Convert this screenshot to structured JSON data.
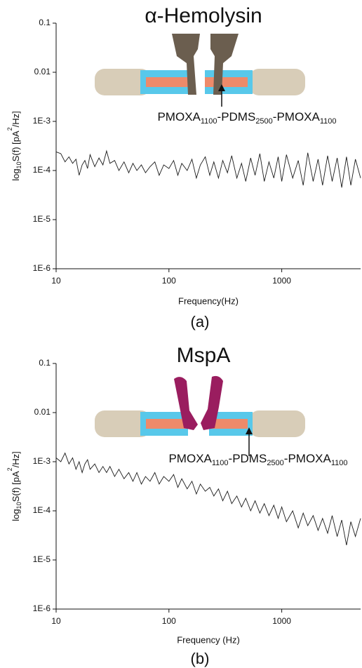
{
  "chart_data": [
    {
      "type": "line",
      "title": "α-Hemolysin",
      "xlabel": "Frequency(Hz)",
      "ylabel": [
        "log",
        "10",
        "S(f) [pA",
        "2",
        "/Hz]"
      ],
      "annotation": [
        "PMOXA",
        "1100",
        "-PDMS",
        "2500",
        "-PMOXA",
        "1100"
      ],
      "panel_label": "(a)",
      "log_x": true,
      "log_y": true,
      "color": "#1a1a1a",
      "xlim": [
        10,
        5000
      ],
      "ylim": [
        1e-06,
        0.1
      ],
      "xticks": [
        10,
        100,
        1000
      ],
      "yticks": [
        {
          "value": 1e-06,
          "label": "1E-6"
        },
        {
          "value": 1e-05,
          "label": "1E-5"
        },
        {
          "value": 0.0001,
          "label": "1E-4"
        },
        {
          "value": 0.001,
          "label": "1E-3"
        },
        0.01,
        0.1
      ],
      "x": [
        10,
        11,
        12,
        13,
        14,
        15,
        16,
        17,
        18,
        19,
        20,
        22,
        24,
        26,
        28,
        30,
        33,
        36,
        40,
        44,
        48,
        52,
        57,
        62,
        68,
        75,
        82,
        90,
        100,
        110,
        120,
        130,
        145,
        160,
        175,
        190,
        210,
        230,
        250,
        275,
        300,
        330,
        360,
        400,
        440,
        480,
        530,
        580,
        640,
        700,
        770,
        850,
        930,
        1000,
        1100,
        1250,
        1400,
        1550,
        1700,
        1900,
        2100,
        2300,
        2550,
        2800,
        3100,
        3400,
        3750,
        4100,
        4500,
        5000
      ],
      "values": [
        0.00024,
        0.00022,
        0.00015,
        0.00019,
        0.00014,
        0.00017,
        8e-05,
        0.00013,
        0.00016,
        0.00011,
        0.00021,
        0.00012,
        0.00018,
        0.00013,
        0.00025,
        0.00014,
        0.00016,
        0.0001,
        0.00015,
        9e-05,
        0.00014,
        0.0001,
        0.00013,
        9e-05,
        0.00012,
        0.00015,
        8e-05,
        0.00013,
        0.00011,
        0.00016,
        8e-05,
        0.00014,
        0.0001,
        0.00017,
        7e-05,
        0.00013,
        0.00019,
        8e-05,
        0.00015,
        7e-05,
        0.00016,
        9e-05,
        0.0002,
        7e-05,
        0.00014,
        6e-05,
        0.00018,
        8e-05,
        0.00022,
        6e-05,
        0.00015,
        7e-05,
        0.00019,
        6e-05,
        0.00021,
        7e-05,
        0.00016,
        5e-05,
        0.00023,
        6e-05,
        0.00017,
        5e-05,
        0.0002,
        6e-05,
        0.00018,
        4.5e-05,
        0.00019,
        5e-05,
        0.00017,
        7e-05
      ]
    },
    {
      "type": "line",
      "title": "MspA",
      "xlabel": "Frequency (Hz)",
      "ylabel": [
        "log",
        "10",
        "S(f) [pA",
        "2",
        "/Hz]"
      ],
      "annotation": [
        "PMOXA",
        "1100",
        "-PDMS",
        "2500",
        "-PMOXA",
        "1100"
      ],
      "panel_label": "(b)",
      "log_x": true,
      "log_y": true,
      "color": "#1a1a1a",
      "xlim": [
        10,
        5000
      ],
      "ylim": [
        1e-06,
        0.1
      ],
      "xticks": [
        10,
        100,
        1000
      ],
      "yticks": [
        {
          "value": 1e-06,
          "label": "1E-6"
        },
        {
          "value": 1e-05,
          "label": "1E-5"
        },
        {
          "value": 0.0001,
          "label": "1E-4"
        },
        {
          "value": 0.001,
          "label": "1E-3"
        },
        0.01,
        0.1
      ],
      "x": [
        10,
        11,
        12,
        13,
        14,
        15,
        16,
        17,
        18,
        19,
        20,
        22,
        24,
        26,
        28,
        30,
        33,
        36,
        40,
        44,
        48,
        52,
        57,
        62,
        68,
        75,
        82,
        90,
        100,
        110,
        120,
        130,
        145,
        160,
        175,
        190,
        210,
        230,
        250,
        275,
        300,
        330,
        360,
        400,
        440,
        480,
        530,
        580,
        640,
        700,
        770,
        850,
        930,
        1000,
        1100,
        1250,
        1400,
        1550,
        1700,
        1900,
        2100,
        2300,
        2550,
        2800,
        3100,
        3400,
        3750,
        4100,
        4500,
        5000
      ],
      "values": [
        0.0012,
        0.001,
        0.0015,
        0.0009,
        0.0012,
        0.0007,
        0.001,
        0.0006,
        0.0009,
        0.0011,
        0.0007,
        0.0009,
        0.0006,
        0.0008,
        0.0006,
        0.0008,
        0.0005,
        0.0007,
        0.00045,
        0.0006,
        0.0004,
        0.0006,
        0.00035,
        0.0005,
        0.0004,
        0.0006,
        0.00035,
        0.0005,
        0.0004,
        0.00055,
        0.0003,
        0.00045,
        0.00028,
        0.0004,
        0.00022,
        0.00035,
        0.00025,
        0.0003,
        0.0002,
        0.00028,
        0.00016,
        0.00025,
        0.00014,
        0.0002,
        0.00012,
        0.00018,
        0.0001,
        0.00016,
        9e-05,
        0.00014,
        8e-05,
        0.00013,
        7e-05,
        0.00012,
        6e-05,
        0.0001,
        4.5e-05,
        9e-05,
        5e-05,
        8e-05,
        4e-05,
        7e-05,
        3.5e-05,
        8e-05,
        3e-05,
        6.5e-05,
        2e-05,
        6e-05,
        3e-05,
        7e-05
      ]
    }
  ]
}
